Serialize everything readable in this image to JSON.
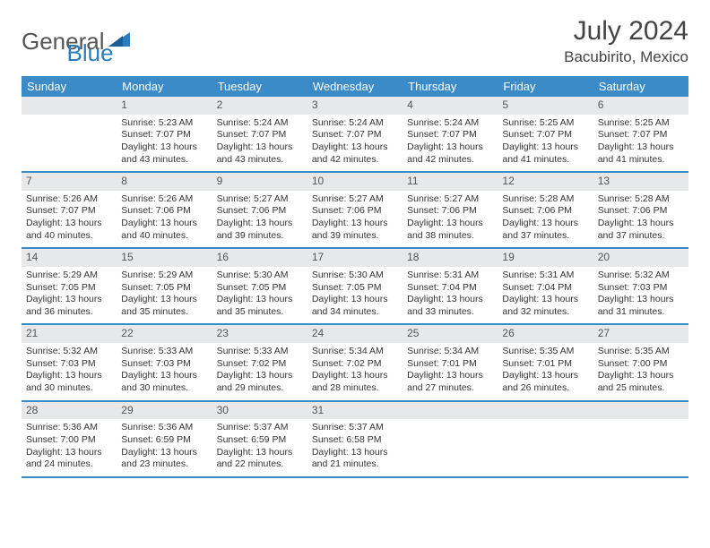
{
  "brand": {
    "part1": "General",
    "part2": "Blue"
  },
  "header": {
    "title": "July 2024",
    "location": "Bacubirito, Mexico"
  },
  "colors": {
    "header_bg": "#3b8bc9",
    "header_text": "#ffffff",
    "daynum_bg": "#e6e8ea",
    "border": "#3b8bc9",
    "brand_blue": "#2b7bbf",
    "text": "#333333"
  },
  "weekdays": [
    "Sunday",
    "Monday",
    "Tuesday",
    "Wednesday",
    "Thursday",
    "Friday",
    "Saturday"
  ],
  "weeks": [
    [
      {
        "num": "",
        "sunrise": "",
        "sunset": "",
        "daylight": ""
      },
      {
        "num": "1",
        "sunrise": "Sunrise: 5:23 AM",
        "sunset": "Sunset: 7:07 PM",
        "daylight": "Daylight: 13 hours and 43 minutes."
      },
      {
        "num": "2",
        "sunrise": "Sunrise: 5:24 AM",
        "sunset": "Sunset: 7:07 PM",
        "daylight": "Daylight: 13 hours and 43 minutes."
      },
      {
        "num": "3",
        "sunrise": "Sunrise: 5:24 AM",
        "sunset": "Sunset: 7:07 PM",
        "daylight": "Daylight: 13 hours and 42 minutes."
      },
      {
        "num": "4",
        "sunrise": "Sunrise: 5:24 AM",
        "sunset": "Sunset: 7:07 PM",
        "daylight": "Daylight: 13 hours and 42 minutes."
      },
      {
        "num": "5",
        "sunrise": "Sunrise: 5:25 AM",
        "sunset": "Sunset: 7:07 PM",
        "daylight": "Daylight: 13 hours and 41 minutes."
      },
      {
        "num": "6",
        "sunrise": "Sunrise: 5:25 AM",
        "sunset": "Sunset: 7:07 PM",
        "daylight": "Daylight: 13 hours and 41 minutes."
      }
    ],
    [
      {
        "num": "7",
        "sunrise": "Sunrise: 5:26 AM",
        "sunset": "Sunset: 7:07 PM",
        "daylight": "Daylight: 13 hours and 40 minutes."
      },
      {
        "num": "8",
        "sunrise": "Sunrise: 5:26 AM",
        "sunset": "Sunset: 7:06 PM",
        "daylight": "Daylight: 13 hours and 40 minutes."
      },
      {
        "num": "9",
        "sunrise": "Sunrise: 5:27 AM",
        "sunset": "Sunset: 7:06 PM",
        "daylight": "Daylight: 13 hours and 39 minutes."
      },
      {
        "num": "10",
        "sunrise": "Sunrise: 5:27 AM",
        "sunset": "Sunset: 7:06 PM",
        "daylight": "Daylight: 13 hours and 39 minutes."
      },
      {
        "num": "11",
        "sunrise": "Sunrise: 5:27 AM",
        "sunset": "Sunset: 7:06 PM",
        "daylight": "Daylight: 13 hours and 38 minutes."
      },
      {
        "num": "12",
        "sunrise": "Sunrise: 5:28 AM",
        "sunset": "Sunset: 7:06 PM",
        "daylight": "Daylight: 13 hours and 37 minutes."
      },
      {
        "num": "13",
        "sunrise": "Sunrise: 5:28 AM",
        "sunset": "Sunset: 7:06 PM",
        "daylight": "Daylight: 13 hours and 37 minutes."
      }
    ],
    [
      {
        "num": "14",
        "sunrise": "Sunrise: 5:29 AM",
        "sunset": "Sunset: 7:05 PM",
        "daylight": "Daylight: 13 hours and 36 minutes."
      },
      {
        "num": "15",
        "sunrise": "Sunrise: 5:29 AM",
        "sunset": "Sunset: 7:05 PM",
        "daylight": "Daylight: 13 hours and 35 minutes."
      },
      {
        "num": "16",
        "sunrise": "Sunrise: 5:30 AM",
        "sunset": "Sunset: 7:05 PM",
        "daylight": "Daylight: 13 hours and 35 minutes."
      },
      {
        "num": "17",
        "sunrise": "Sunrise: 5:30 AM",
        "sunset": "Sunset: 7:05 PM",
        "daylight": "Daylight: 13 hours and 34 minutes."
      },
      {
        "num": "18",
        "sunrise": "Sunrise: 5:31 AM",
        "sunset": "Sunset: 7:04 PM",
        "daylight": "Daylight: 13 hours and 33 minutes."
      },
      {
        "num": "19",
        "sunrise": "Sunrise: 5:31 AM",
        "sunset": "Sunset: 7:04 PM",
        "daylight": "Daylight: 13 hours and 32 minutes."
      },
      {
        "num": "20",
        "sunrise": "Sunrise: 5:32 AM",
        "sunset": "Sunset: 7:03 PM",
        "daylight": "Daylight: 13 hours and 31 minutes."
      }
    ],
    [
      {
        "num": "21",
        "sunrise": "Sunrise: 5:32 AM",
        "sunset": "Sunset: 7:03 PM",
        "daylight": "Daylight: 13 hours and 30 minutes."
      },
      {
        "num": "22",
        "sunrise": "Sunrise: 5:33 AM",
        "sunset": "Sunset: 7:03 PM",
        "daylight": "Daylight: 13 hours and 30 minutes."
      },
      {
        "num": "23",
        "sunrise": "Sunrise: 5:33 AM",
        "sunset": "Sunset: 7:02 PM",
        "daylight": "Daylight: 13 hours and 29 minutes."
      },
      {
        "num": "24",
        "sunrise": "Sunrise: 5:34 AM",
        "sunset": "Sunset: 7:02 PM",
        "daylight": "Daylight: 13 hours and 28 minutes."
      },
      {
        "num": "25",
        "sunrise": "Sunrise: 5:34 AM",
        "sunset": "Sunset: 7:01 PM",
        "daylight": "Daylight: 13 hours and 27 minutes."
      },
      {
        "num": "26",
        "sunrise": "Sunrise: 5:35 AM",
        "sunset": "Sunset: 7:01 PM",
        "daylight": "Daylight: 13 hours and 26 minutes."
      },
      {
        "num": "27",
        "sunrise": "Sunrise: 5:35 AM",
        "sunset": "Sunset: 7:00 PM",
        "daylight": "Daylight: 13 hours and 25 minutes."
      }
    ],
    [
      {
        "num": "28",
        "sunrise": "Sunrise: 5:36 AM",
        "sunset": "Sunset: 7:00 PM",
        "daylight": "Daylight: 13 hours and 24 minutes."
      },
      {
        "num": "29",
        "sunrise": "Sunrise: 5:36 AM",
        "sunset": "Sunset: 6:59 PM",
        "daylight": "Daylight: 13 hours and 23 minutes."
      },
      {
        "num": "30",
        "sunrise": "Sunrise: 5:37 AM",
        "sunset": "Sunset: 6:59 PM",
        "daylight": "Daylight: 13 hours and 22 minutes."
      },
      {
        "num": "31",
        "sunrise": "Sunrise: 5:37 AM",
        "sunset": "Sunset: 6:58 PM",
        "daylight": "Daylight: 13 hours and 21 minutes."
      },
      {
        "num": "",
        "sunrise": "",
        "sunset": "",
        "daylight": ""
      },
      {
        "num": "",
        "sunrise": "",
        "sunset": "",
        "daylight": ""
      },
      {
        "num": "",
        "sunrise": "",
        "sunset": "",
        "daylight": ""
      }
    ]
  ]
}
